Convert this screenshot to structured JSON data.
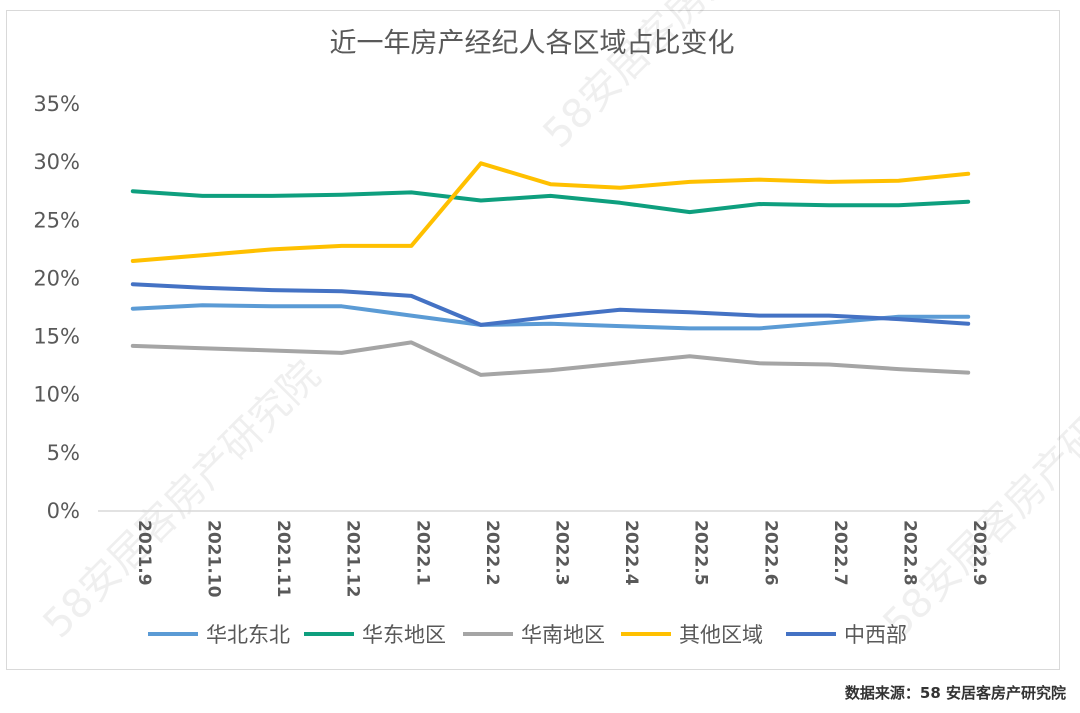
{
  "chart_data": {
    "type": "line",
    "title": "近一年房产经纪人各区域占比变化",
    "categories": [
      "2021.9",
      "2021.10",
      "2021.11",
      "2021.12",
      "2022.1",
      "2022.2",
      "2022.3",
      "2022.4",
      "2022.5",
      "2022.6",
      "2022.7",
      "2022.8",
      "2022.9"
    ],
    "y_ticks": [
      "0%",
      "5%",
      "10%",
      "15%",
      "20%",
      "25%",
      "30%",
      "35%"
    ],
    "ylim": [
      0,
      35
    ],
    "grid": false,
    "legend_position": "bottom",
    "series": [
      {
        "name": "华北东北",
        "color": "#5b9bd5",
        "values": [
          17.4,
          17.7,
          17.6,
          17.6,
          16.8,
          16.0,
          16.1,
          15.9,
          15.7,
          15.7,
          16.2,
          16.7,
          16.7
        ]
      },
      {
        "name": "华东地区",
        "color": "#0e9f7e",
        "values": [
          27.5,
          27.1,
          27.1,
          27.2,
          27.4,
          26.7,
          27.1,
          26.5,
          25.7,
          26.4,
          26.3,
          26.3,
          26.6
        ]
      },
      {
        "name": "华南地区",
        "color": "#a5a5a5",
        "values": [
          14.2,
          14.0,
          13.8,
          13.6,
          14.5,
          11.7,
          12.1,
          12.7,
          13.3,
          12.7,
          12.6,
          12.2,
          11.9
        ]
      },
      {
        "name": "其他区域",
        "color": "#ffc000",
        "values": [
          21.5,
          22.0,
          22.5,
          22.8,
          22.8,
          29.9,
          28.1,
          27.8,
          28.3,
          28.5,
          28.3,
          28.4,
          29.0
        ]
      },
      {
        "name": "中西部",
        "color": "#4472c4",
        "values": [
          19.5,
          19.2,
          19.0,
          18.9,
          18.5,
          16.0,
          16.7,
          17.3,
          17.1,
          16.8,
          16.8,
          16.5,
          16.1
        ]
      }
    ]
  },
  "source_note": "数据来源：58 安居客房产研究院",
  "watermarks": [
    "58安居客房产研究院",
    "58安居客房产研究院",
    "58安居客房产研究院"
  ]
}
